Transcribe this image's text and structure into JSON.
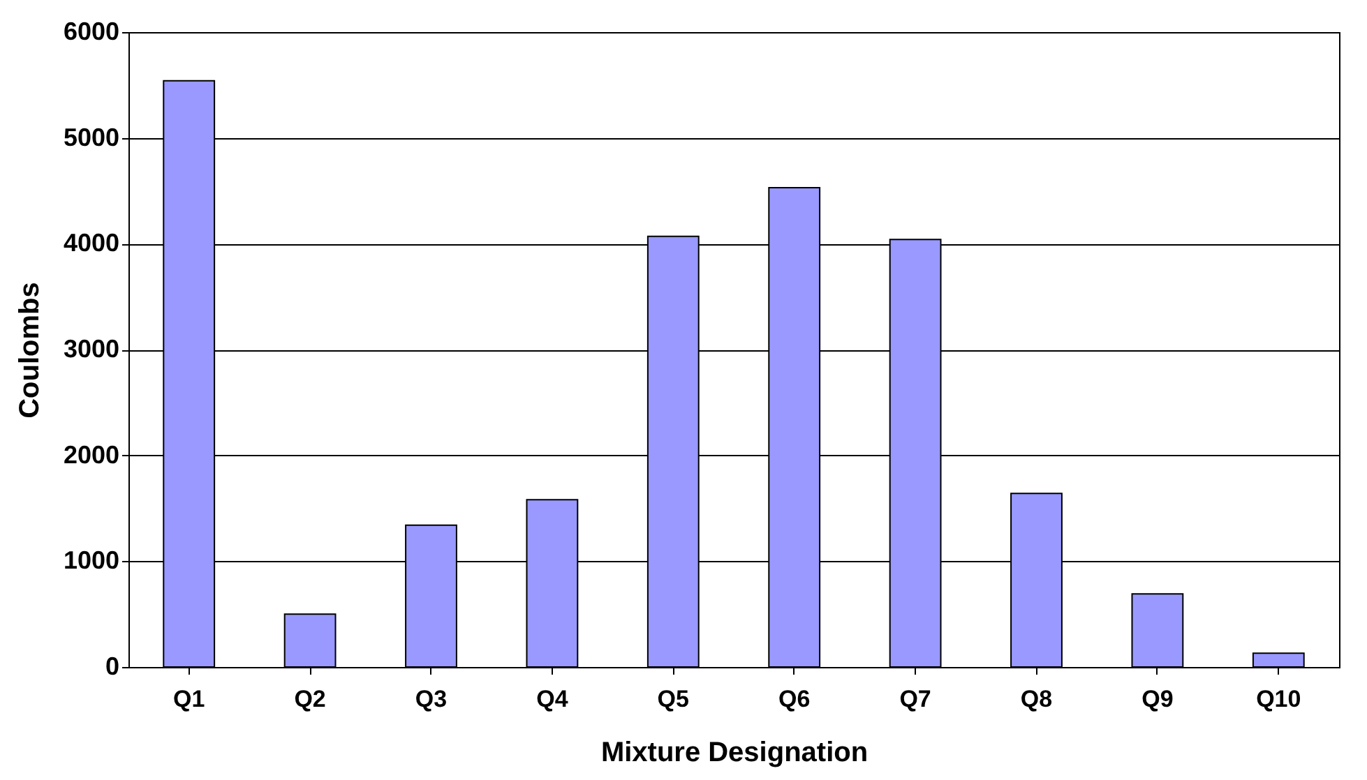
{
  "chart_data": {
    "type": "bar",
    "xlabel": "Mixture Designation",
    "ylabel": "Coulombs",
    "categories": [
      "Q1",
      "Q2",
      "Q3",
      "Q4",
      "Q5",
      "Q6",
      "Q7",
      "Q8",
      "Q9",
      "Q10"
    ],
    "values": [
      5540,
      500,
      1340,
      1580,
      4070,
      4530,
      4040,
      1640,
      690,
      130
    ],
    "color": "#9999ff",
    "ylim": [
      0,
      6000
    ],
    "yticks": [
      0,
      1000,
      2000,
      3000,
      4000,
      5000,
      6000
    ],
    "grid": "y"
  }
}
